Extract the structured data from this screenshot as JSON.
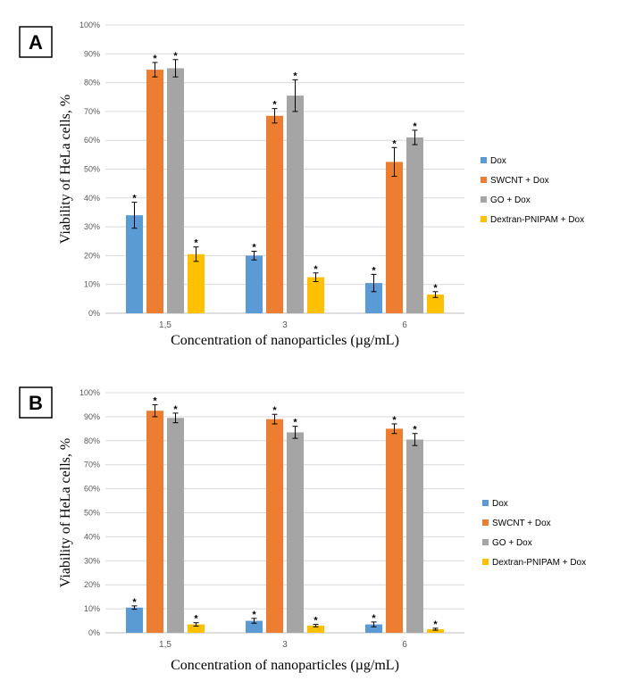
{
  "chart_data": [
    {
      "type": "bar",
      "panel": "A",
      "categories": [
        "1,5",
        "3",
        "6"
      ],
      "series": [
        {
          "name": "Dox",
          "color": "#5b9bd5",
          "values": [
            34,
            20,
            10.5
          ],
          "errors": [
            4.5,
            1.5,
            3
          ]
        },
        {
          "name": "SWCNT + Dox",
          "color": "#ed7d31",
          "values": [
            84.5,
            68.5,
            52.5
          ],
          "errors": [
            2.5,
            2.5,
            5
          ]
        },
        {
          "name": "GO + Dox",
          "color": "#a5a5a5",
          "values": [
            85,
            75.5,
            61
          ],
          "errors": [
            3,
            5.5,
            2.5
          ]
        },
        {
          "name": "Dextran-PNIPAM + Dox",
          "color": "#ffc000",
          "values": [
            20.5,
            12.5,
            6.5
          ],
          "errors": [
            2.5,
            1.5,
            1
          ]
        }
      ],
      "significance_marker": "*",
      "yticks": [
        "0%",
        "10%",
        "20%",
        "30%",
        "40%",
        "50%",
        "60%",
        "70%",
        "80%",
        "90%",
        "100%"
      ],
      "ylim": [
        0,
        100
      ],
      "xlabel": "Concentration  of nanoparticles  (µg/mL)",
      "ylabel": "Viability of HeLa cells, %",
      "legend": "right"
    },
    {
      "type": "bar",
      "panel": "B",
      "categories": [
        "1,5",
        "3",
        "6"
      ],
      "series": [
        {
          "name": "Dox",
          "color": "#5b9bd5",
          "values": [
            10.5,
            5,
            3.5
          ],
          "errors": [
            0.7,
            1,
            1
          ]
        },
        {
          "name": "SWCNT + Dox",
          "color": "#ed7d31",
          "values": [
            92.5,
            89,
            85
          ],
          "errors": [
            2.5,
            2,
            2
          ]
        },
        {
          "name": "GO + Dox",
          "color": "#a5a5a5",
          "values": [
            89.5,
            83.5,
            80.5
          ],
          "errors": [
            2,
            2.5,
            2.5
          ]
        },
        {
          "name": "Dextran-PNIPAM + Dox",
          "color": "#ffc000",
          "values": [
            3.5,
            3,
            1.5
          ],
          "errors": [
            0.7,
            0.5,
            0.4
          ]
        }
      ],
      "significance_marker": "*",
      "yticks": [
        "0%",
        "10%",
        "20%",
        "30%",
        "40%",
        "50%",
        "60%",
        "70%",
        "80%",
        "90%",
        "100%"
      ],
      "ylim": [
        0,
        100
      ],
      "xlabel": "Concentration  of nanoparticles  (µg/mL)",
      "ylabel": "Viability of HeLa cells, %",
      "legend": "right"
    }
  ]
}
